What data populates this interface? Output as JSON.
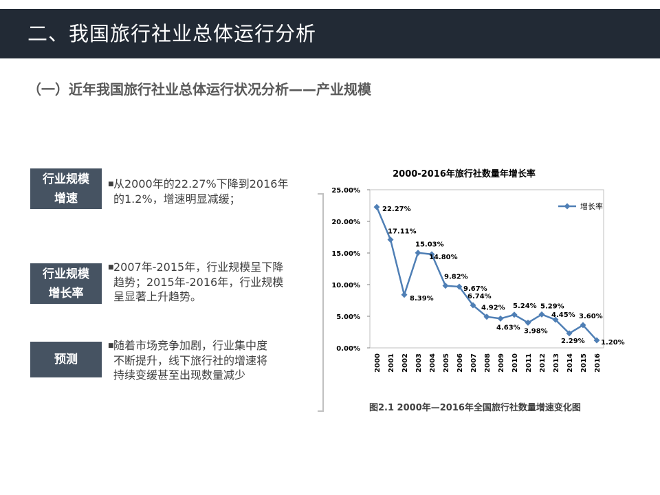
{
  "header": {
    "title": "二、我国旅行社业总体运行分析"
  },
  "subtitle": "（一）近年我国旅行社业总体运行状况分析——产业规模",
  "sections": [
    {
      "label_lines": [
        "行业规模",
        "增速"
      ],
      "text_lines": [
        "从2000年的22.27%下降到2016年",
        "的1.2%，增速明显减缓；"
      ]
    },
    {
      "label_lines": [
        "行业规模",
        "增长率"
      ],
      "text_lines": [
        "2007年-2015年，行业规模呈下降",
        "趋势；2015年-2016年，行业规模",
        "呈显著上升趋势。"
      ]
    },
    {
      "label_lines": [
        "预测"
      ],
      "text_lines": [
        "随着市场竞争加剧，行业集中度",
        "不断提升，线下旅行社的增速将",
        "持续变缓甚至出现数量减少"
      ]
    }
  ],
  "colors": {
    "header_bg": "#222a35",
    "label_bg": "#465362",
    "series": "#4f7fb5",
    "bracket": "#c0c0c0"
  },
  "chart_data": {
    "type": "line",
    "title": "2000-2016年旅行社数量年增长率",
    "x": [
      "2000",
      "2001",
      "2002",
      "2003",
      "2004",
      "2005",
      "2006",
      "2007",
      "2008",
      "2009",
      "2010",
      "2011",
      "2012",
      "2013",
      "2014",
      "2015",
      "2016"
    ],
    "series": [
      {
        "name": "增长率",
        "values": [
          22.27,
          17.11,
          8.39,
          15.03,
          14.8,
          9.82,
          9.67,
          6.74,
          4.92,
          4.63,
          5.24,
          3.98,
          5.29,
          4.45,
          2.29,
          3.6,
          1.2
        ]
      }
    ],
    "data_labels": [
      "22.27%",
      "17.11%",
      "8.39%",
      "15.03%",
      "14.80%",
      "9.82%",
      "9.67%",
      "6.74%",
      "4.92%",
      "4.63%",
      "5.24%",
      "3.98%",
      "5.29%",
      "4.45%",
      "2.29%",
      "3.60%",
      "1.20%"
    ],
    "y_ticks": [
      "0.00%",
      "5.00%",
      "10.00%",
      "15.00%",
      "20.00%",
      "25.00%"
    ],
    "ylim": [
      0,
      25
    ],
    "legend_position": "top-right",
    "grid": false
  },
  "caption": "图2.1 2000年—2016年全国旅行社数量增速变化图"
}
